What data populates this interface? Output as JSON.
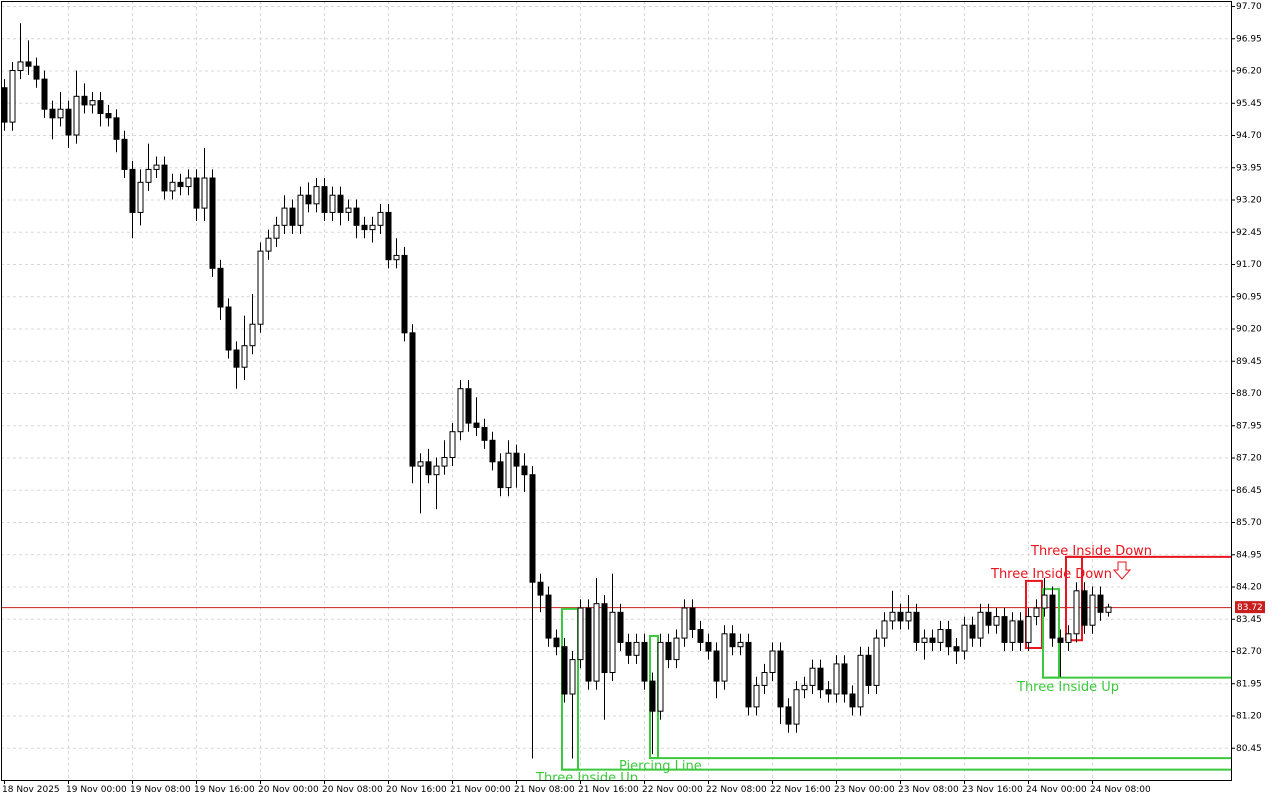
{
  "chart_data": {
    "type": "candlestick",
    "categories": [
      "18 Nov 2025",
      null,
      null,
      null,
      null,
      null,
      null,
      null,
      "19 Nov 00:00",
      null,
      null,
      null,
      null,
      null,
      null,
      null,
      "19 Nov 08:00",
      null,
      null,
      null,
      null,
      null,
      null,
      null,
      "19 Nov 16:00",
      null,
      null,
      null,
      null,
      null,
      null,
      null,
      "20 Nov 00:00",
      null,
      null,
      null,
      null,
      null,
      null,
      null,
      "20 Nov 08:00",
      null,
      null,
      null,
      null,
      null,
      null,
      null,
      "20 Nov 16:00",
      null,
      null,
      null,
      null,
      null,
      null,
      null,
      "21 Nov 00:00",
      null,
      null,
      null,
      null,
      null,
      null,
      null,
      "21 Nov 08:00",
      null,
      null,
      null,
      null,
      null,
      null,
      null,
      "21 Nov 16:00",
      null,
      null,
      null,
      null,
      null,
      null,
      null,
      "22 Nov 00:00",
      null,
      null,
      null,
      null,
      null,
      null,
      null,
      "22 Nov 08:00",
      null,
      null,
      null,
      null,
      null,
      null,
      null,
      "22 Nov 16:00",
      null,
      null,
      null,
      null,
      null,
      null,
      null,
      "23 Nov 00:00",
      null,
      null,
      null,
      null,
      null,
      null,
      null,
      "23 Nov 08:00",
      null,
      null,
      null,
      null,
      null,
      null,
      null,
      "23 Nov 16:00",
      null,
      null,
      null,
      null,
      null,
      null,
      null,
      "24 Nov 00:00",
      null,
      null,
      null,
      null,
      null,
      null,
      null,
      "24 Nov 08:00",
      null,
      null
    ],
    "open": [
      95.8,
      95.0,
      96.2,
      96.4,
      96.3,
      96.0,
      95.3,
      95.1,
      95.3,
      94.7,
      95.6,
      95.4,
      95.5,
      95.2,
      95.1,
      94.6,
      93.9,
      92.9,
      93.6,
      93.9,
      94.0,
      93.4,
      93.6,
      93.5,
      93.7,
      93.0,
      93.7,
      91.6,
      90.7,
      89.7,
      89.3,
      89.8,
      90.3,
      92.0,
      92.3,
      92.6,
      93.0,
      92.6,
      93.3,
      93.1,
      93.5,
      92.9,
      93.3,
      92.9,
      93.0,
      92.6,
      92.5,
      92.6,
      92.9,
      91.8,
      91.9,
      90.1,
      87.0,
      87.1,
      86.8,
      87.0,
      87.2,
      87.8,
      88.8,
      88.0,
      87.9,
      87.6,
      87.1,
      86.5,
      87.3,
      87.0,
      86.8,
      84.3,
      84.0,
      83.0,
      82.8,
      81.7,
      82.5,
      83.7,
      82.0,
      83.8,
      82.2,
      83.6,
      82.9,
      82.6,
      82.9,
      82.0,
      81.3,
      82.9,
      82.5,
      83.0,
      83.7,
      83.2,
      82.9,
      82.7,
      82.0,
      83.1,
      82.8,
      82.9,
      81.4,
      81.9,
      82.2,
      82.7,
      81.4,
      81.0,
      81.8,
      81.9,
      82.3,
      81.8,
      81.7,
      82.4,
      81.7,
      81.4,
      82.6,
      81.9,
      83.0,
      83.4,
      83.6,
      83.4,
      83.6,
      82.9,
      83.0,
      82.9,
      83.2,
      82.8,
      82.7,
      83.3,
      83.0,
      83.6,
      83.3,
      83.5,
      82.9,
      83.4,
      82.9,
      83.5,
      83.7,
      84.0,
      83.0,
      82.9,
      83.1,
      84.1,
      83.3,
      84.0,
      83.6
    ],
    "high": [
      96.0,
      96.4,
      97.3,
      96.9,
      96.5,
      96.2,
      95.5,
      95.7,
      95.5,
      96.2,
      95.9,
      95.7,
      95.7,
      95.4,
      95.3,
      94.8,
      94.1,
      93.9,
      94.5,
      94.2,
      94.2,
      93.8,
      93.8,
      93.9,
      93.9,
      94.4,
      93.9,
      91.8,
      90.9,
      89.9,
      90.5,
      91.0,
      92.2,
      92.5,
      92.8,
      93.3,
      93.2,
      93.5,
      93.6,
      93.7,
      93.7,
      93.5,
      93.5,
      93.2,
      93.2,
      92.8,
      92.8,
      93.1,
      93.1,
      92.3,
      92.1,
      90.3,
      87.3,
      87.4,
      87.2,
      87.6,
      88.0,
      89.0,
      89.0,
      88.6,
      88.1,
      87.8,
      87.3,
      87.6,
      87.5,
      87.3,
      87.0,
      84.5,
      84.2,
      83.2,
      83.0,
      82.7,
      83.9,
      83.9,
      84.4,
      84.0,
      84.5,
      83.8,
      83.1,
      83.1,
      83.1,
      82.2,
      83.1,
      83.1,
      83.2,
      83.9,
      83.9,
      83.4,
      83.1,
      82.9,
      83.3,
      83.3,
      83.1,
      83.1,
      82.1,
      82.4,
      82.9,
      82.9,
      81.6,
      82.0,
      82.1,
      82.5,
      82.5,
      82.0,
      82.6,
      82.6,
      81.9,
      82.8,
      82.8,
      83.2,
      83.6,
      84.1,
      83.8,
      84.0,
      83.8,
      83.2,
      83.2,
      83.4,
      83.4,
      83.0,
      83.5,
      83.5,
      83.8,
      83.8,
      83.7,
      83.7,
      83.6,
      83.6,
      83.7,
      83.9,
      84.4,
      84.2,
      83.2,
      83.3,
      84.3,
      84.3,
      84.2,
      84.2,
      83.8
    ],
    "low": [
      94.8,
      94.8,
      96.0,
      96.1,
      95.8,
      95.1,
      94.6,
      94.9,
      94.4,
      94.5,
      95.2,
      95.2,
      94.9,
      94.9,
      94.3,
      93.7,
      92.3,
      92.6,
      93.4,
      93.7,
      93.2,
      93.2,
      93.3,
      93.3,
      92.7,
      92.7,
      91.4,
      90.4,
      89.5,
      88.8,
      89.0,
      89.6,
      90.1,
      91.8,
      92.1,
      92.4,
      92.4,
      92.4,
      92.9,
      92.9,
      92.7,
      92.7,
      92.6,
      92.7,
      92.3,
      92.3,
      92.2,
      92.4,
      91.6,
      91.6,
      89.9,
      86.6,
      85.9,
      86.6,
      86.0,
      86.8,
      87.0,
      87.6,
      87.8,
      87.7,
      87.4,
      86.9,
      86.3,
      86.3,
      86.5,
      86.4,
      80.2,
      83.6,
      82.8,
      82.6,
      81.5,
      80.2,
      82.3,
      81.8,
      81.8,
      81.1,
      82.0,
      82.7,
      82.4,
      82.4,
      81.8,
      80.3,
      81.1,
      82.3,
      82.3,
      82.8,
      83.0,
      82.7,
      82.5,
      81.6,
      81.8,
      82.6,
      82.6,
      81.2,
      81.2,
      81.7,
      82.0,
      81.0,
      80.8,
      80.8,
      81.6,
      81.7,
      81.6,
      81.5,
      81.5,
      81.5,
      81.2,
      81.2,
      81.7,
      81.7,
      82.8,
      83.2,
      83.2,
      83.2,
      82.7,
      82.5,
      82.7,
      82.7,
      82.6,
      82.4,
      82.5,
      82.8,
      82.8,
      83.1,
      83.1,
      82.7,
      82.7,
      82.7,
      82.7,
      83.3,
      83.5,
      82.8,
      82.1,
      82.7,
      82.9,
      83.1,
      83.1,
      83.4,
      83.5
    ],
    "close": [
      95.0,
      96.2,
      96.4,
      96.3,
      96.0,
      95.3,
      95.1,
      95.3,
      94.7,
      95.6,
      95.4,
      95.5,
      95.2,
      95.1,
      94.6,
      93.9,
      92.9,
      93.6,
      93.9,
      94.0,
      93.4,
      93.6,
      93.5,
      93.7,
      93.0,
      93.7,
      91.6,
      90.7,
      89.7,
      89.3,
      89.8,
      90.3,
      92.0,
      92.3,
      92.6,
      93.0,
      92.6,
      93.3,
      93.1,
      93.5,
      92.9,
      93.3,
      92.9,
      93.0,
      92.6,
      92.5,
      92.6,
      92.9,
      91.8,
      91.9,
      90.1,
      87.0,
      87.1,
      86.8,
      87.0,
      87.2,
      87.8,
      88.8,
      88.0,
      87.9,
      87.6,
      87.1,
      86.5,
      87.3,
      87.0,
      86.8,
      84.3,
      84.0,
      83.0,
      82.8,
      81.7,
      82.5,
      83.7,
      82.0,
      83.8,
      82.2,
      83.6,
      82.9,
      82.6,
      82.9,
      82.0,
      81.3,
      82.9,
      82.5,
      83.0,
      83.7,
      83.2,
      82.9,
      82.7,
      82.0,
      83.1,
      82.8,
      82.9,
      81.4,
      81.9,
      82.2,
      82.7,
      81.4,
      81.0,
      81.8,
      81.9,
      82.3,
      81.8,
      81.7,
      82.4,
      81.7,
      81.4,
      82.6,
      81.9,
      83.0,
      83.4,
      83.6,
      83.4,
      83.6,
      82.9,
      83.0,
      82.9,
      83.2,
      82.8,
      82.7,
      83.3,
      83.0,
      83.6,
      83.3,
      83.5,
      82.9,
      83.4,
      82.9,
      83.5,
      83.7,
      84.0,
      83.0,
      82.9,
      83.1,
      84.1,
      83.3,
      84.0,
      83.6,
      83.72
    ],
    "ylim": [
      79.7,
      97.84
    ],
    "yticks": [
      {
        "value": 97.7,
        "label": "97.70"
      },
      96.95,
      {
        "value": 96.2,
        "label": "96.20"
      },
      95.45,
      {
        "value": 94.7,
        "label": "94.70"
      },
      93.95,
      {
        "value": 93.2,
        "label": "93.20"
      },
      92.45,
      {
        "value": 91.7,
        "label": "91.70"
      },
      90.95,
      {
        "value": 90.2,
        "label": "90.20"
      },
      89.45,
      {
        "value": 88.7,
        "label": "88.70"
      },
      87.95,
      {
        "value": 87.2,
        "label": "87.20"
      },
      86.45,
      {
        "value": 85.7,
        "label": "85.70"
      },
      84.95,
      {
        "value": 84.2,
        "label": "84.20"
      },
      83.45,
      {
        "value": 82.7,
        "label": "82.70"
      },
      81.95,
      {
        "value": 81.2,
        "label": "81.20"
      },
      80.45
    ],
    "grid": true,
    "current_price": 83.72,
    "current_color": "#c81e1e",
    "patterns": [
      {
        "label": "Three Inside Up",
        "color": "#3cc83c",
        "high": 83.68,
        "low": 79.94,
        "level": 79.94
      },
      {
        "label": "Piercing Line",
        "color": "#3cc83c",
        "high": 83.05,
        "low": 80.21,
        "level": 80.21
      },
      {
        "label": "Three Inside Down",
        "color": "#e8141e",
        "high": 84.33,
        "low": 82.77
      },
      {
        "label": "Three Inside Up",
        "color": "#3cc83c",
        "high": 84.14,
        "low": 82.08,
        "level": 82.08
      },
      {
        "label": "Three Inside Down",
        "color": "#e8141e",
        "high": 84.89,
        "low": 82.95,
        "level": 84.89
      }
    ]
  }
}
